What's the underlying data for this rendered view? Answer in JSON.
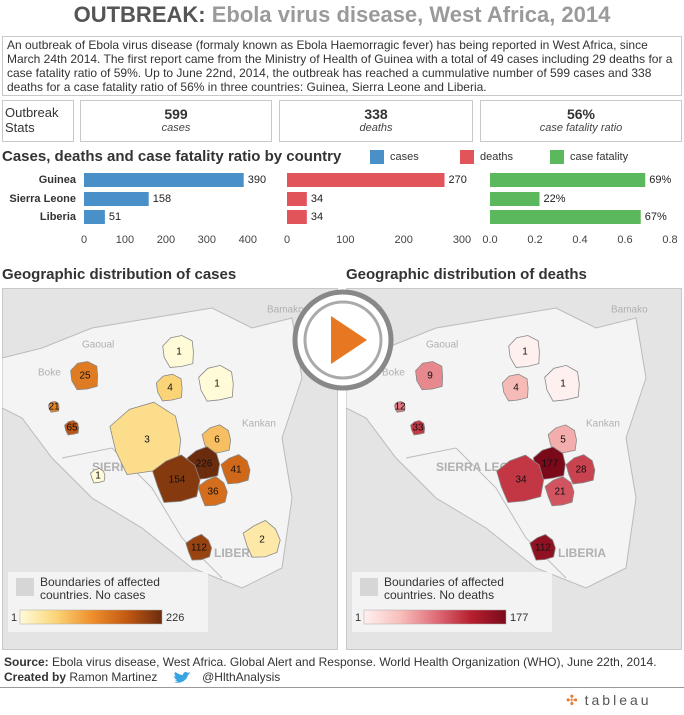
{
  "header": {
    "title_lead": "OUTBREAK:",
    "title_rest": "Ebola virus disease, West Africa, 2014"
  },
  "description": "An outbreak of Ebola virus disease (formaly known as Ebola Haemorragic fever) has being reported in West Africa, since March 24th 2014. The first report came from the Ministry of Health of Guinea with a total of 49 cases including 29 deaths for a case fatality ratio of 59%. Up to June 22nd, 2014, the outbreak has reached a cummulative number of 599 cases and 338 deaths for a case fatality ratio of 56% in three countries: Guinea, Sierra Leone and Liberia.",
  "stats": {
    "label": "Outbreak Stats",
    "items": [
      {
        "value": "599",
        "label": "cases"
      },
      {
        "value": "338",
        "label": "deaths"
      },
      {
        "value": "56%",
        "label": "case fatality ratio"
      }
    ]
  },
  "section_title": "Cases, deaths and case fatality ratio by country",
  "chart_data": [
    {
      "type": "bar",
      "orientation": "horizontal",
      "categories": [
        "Guinea",
        "Sierra Leone",
        "Liberia"
      ],
      "series": [
        {
          "name": "cases",
          "color": "#4a90c8",
          "values": [
            390,
            158,
            51
          ]
        }
      ],
      "xlim": [
        0,
        420
      ],
      "xticks": [
        0,
        100,
        200,
        300,
        400
      ]
    },
    {
      "type": "bar",
      "orientation": "horizontal",
      "series": [
        {
          "name": "deaths",
          "color": "#e0545a",
          "values": [
            270,
            34,
            34
          ]
        }
      ],
      "xlim": [
        0,
        300
      ],
      "xticks": [
        0,
        100,
        200,
        300
      ]
    },
    {
      "type": "bar",
      "orientation": "horizontal",
      "series": [
        {
          "name": "case fatality",
          "color": "#5cb85c",
          "values": [
            0.69,
            0.22,
            0.67
          ],
          "value_labels": [
            "69%",
            "22%",
            "67%"
          ]
        }
      ],
      "xlim": [
        0,
        0.8
      ],
      "xticks": [
        {
          "value": 0,
          "label": "0.0"
        },
        {
          "value": 0.2,
          "label": "0.2"
        },
        {
          "value": 0.4,
          "label": "0.4"
        },
        {
          "value": 0.6,
          "label": "0.6"
        },
        {
          "value": 0.8,
          "label": "0.8"
        }
      ]
    }
  ],
  "maps": [
    {
      "title": "Geographic distribution of cases",
      "legend_text": "Boundaries of affected countries. No cases",
      "scale_min": 1,
      "scale_max": 226,
      "regions": [
        25,
        1,
        4,
        1,
        21,
        65,
        3,
        6,
        1,
        226,
        41,
        154,
        36,
        112,
        2
      ],
      "places": [
        "Bamako",
        "Gaoual",
        "Boke",
        "Kankan",
        "SIERRA LEONE",
        "LIBERIA"
      ]
    },
    {
      "title": "Geographic distribution of deaths",
      "legend_text": "Boundaries of affected countries. No deaths",
      "scale_min": 1,
      "scale_max": 177,
      "regions": [
        9,
        1,
        4,
        1,
        12,
        33,
        5,
        177,
        28,
        34,
        21,
        112
      ],
      "places": [
        "Bamako",
        "Gaoual",
        "Boke",
        "Kankan",
        "SIERRA LEONE",
        "LIBERIA"
      ]
    }
  ],
  "footer": {
    "source_label": "Source:",
    "source": "Ebola virus disease, West Africa. Global Alert and Response. World Health Organization (WHO), June 22th, 2014.",
    "created_label": "Created by",
    "author": "Ramon Martinez",
    "twitter": "@HlthAnalysis"
  },
  "logo": "tableau"
}
